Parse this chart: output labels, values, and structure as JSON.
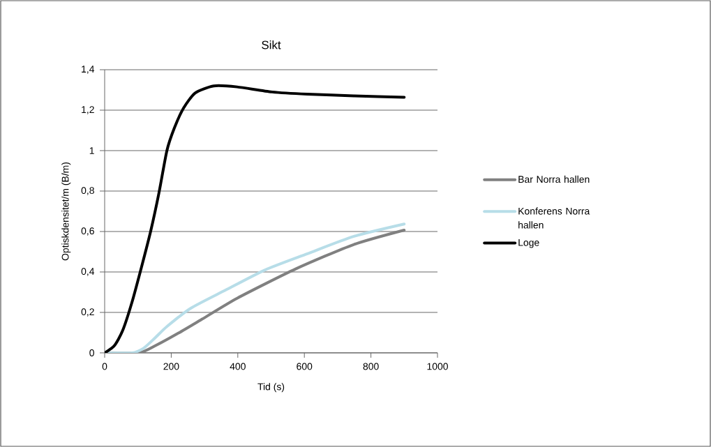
{
  "chart_data": {
    "type": "line",
    "title": "Sikt",
    "xlabel": "Tid (s)",
    "ylabel": "Optiskdensitet/m (B/m)",
    "xlim": [
      0,
      1000
    ],
    "xticks": [
      0,
      200,
      400,
      600,
      800,
      1000
    ],
    "ylim": [
      0,
      1.4
    ],
    "yticks": [
      0,
      {
        "value": 0.2,
        "label": "0,2"
      },
      {
        "value": 0.4,
        "label": "0,4"
      },
      {
        "value": 0.6,
        "label": "0,6"
      },
      {
        "value": 0.8,
        "label": "0,8"
      },
      1,
      {
        "value": 1.2,
        "label": "1,2"
      },
      {
        "value": 1.4,
        "label": "1,4"
      }
    ],
    "grid": "y",
    "legend": "right",
    "marker": "none",
    "line_style": "solid",
    "series": [
      {
        "name": "Bar Norra hallen",
        "color": "#808080",
        "x": [
          0,
          103,
          152,
          222,
          293,
          398,
          574,
          749,
          900
        ],
        "values": [
          0,
          0,
          0.035,
          0.098,
          0.167,
          0.27,
          0.415,
          0.536,
          0.607
        ]
      },
      {
        "name": "Konferens Norra hallen",
        "color": "#b7dde8",
        "x": [
          0,
          82,
          117,
          152,
          187,
          258,
          363,
          482,
          609,
          749,
          900
        ],
        "values": [
          0,
          0,
          0.023,
          0.075,
          0.13,
          0.22,
          0.31,
          0.41,
          0.49,
          0.576,
          0.637
        ]
      },
      {
        "name": "Loge",
        "color": "#000000",
        "x": [
          0,
          29,
          54,
          82,
          110,
          138,
          163,
          187,
          209,
          237,
          272,
          328,
          398,
          503,
          609,
          749,
          900
        ],
        "values": [
          0,
          0.035,
          0.11,
          0.25,
          0.42,
          0.6,
          0.79,
          1.0,
          1.11,
          1.21,
          1.285,
          1.32,
          1.315,
          1.29,
          1.279,
          1.271,
          1.264
        ]
      }
    ]
  }
}
